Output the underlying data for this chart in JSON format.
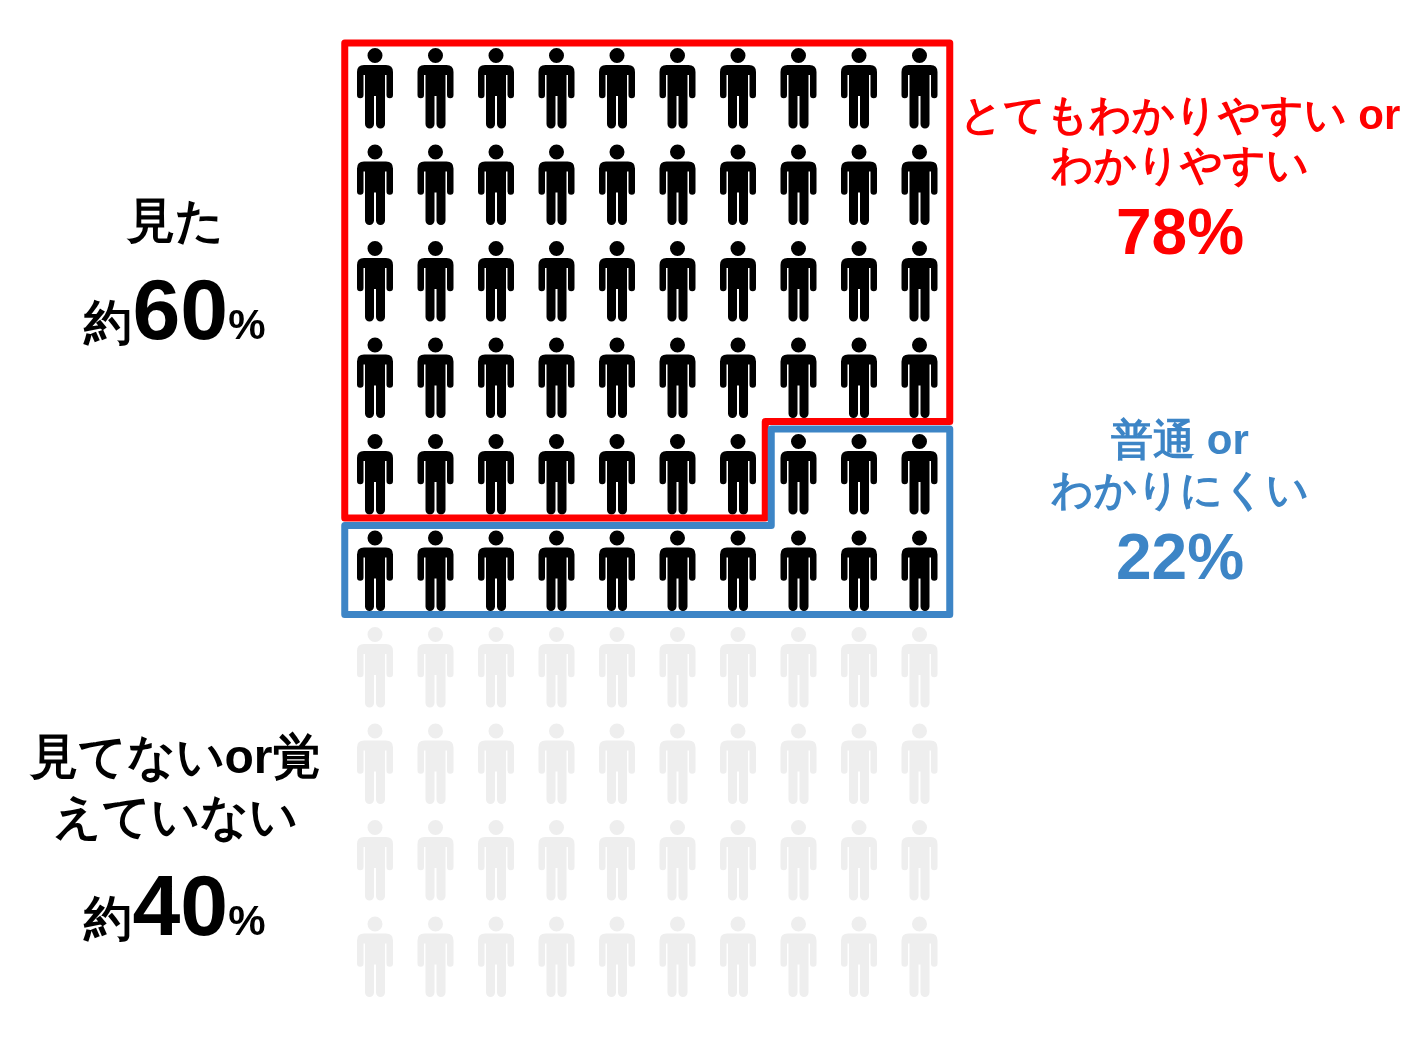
{
  "chart_data": [
    {
      "type": "other",
      "categories": [
        "見た",
        "見てないor覚えていない"
      ],
      "values": [
        60,
        40
      ],
      "value_labels": [
        "約60%",
        "約40%"
      ],
      "colors": [
        "#000000",
        "#eeeeee"
      ]
    },
    {
      "type": "other",
      "categories": [
        "とてもわかりやすい or わかりやすい",
        "普通 or わかりにくい"
      ],
      "values": [
        78,
        22
      ],
      "value_labels": [
        "78%",
        "22%"
      ],
      "colors": [
        "#ff0000",
        "#3d85c6"
      ]
    }
  ]
}
